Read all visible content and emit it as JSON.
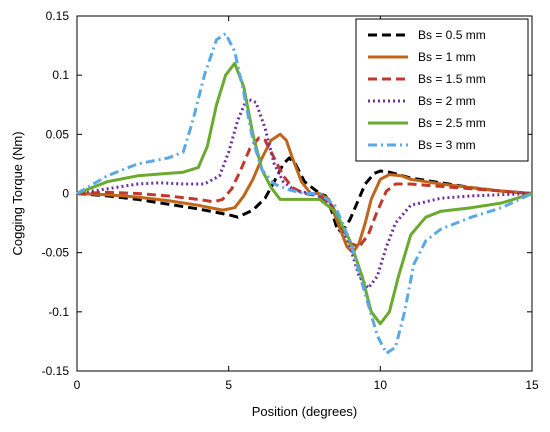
{
  "chart_data": {
    "type": "line",
    "title": "",
    "xlabel": "Position (degrees)",
    "ylabel": "Cogging Torque (Nm)",
    "xlim": [
      0,
      15
    ],
    "ylim": [
      -0.15,
      0.15
    ],
    "xticks": [
      0,
      5,
      10,
      15
    ],
    "yticks": [
      0.15,
      0.1,
      0.05,
      0,
      -0.05,
      -0.1,
      -0.15
    ],
    "ytick_labels": [
      "0.15",
      "0.1",
      "0.05",
      "0",
      "-0.05",
      "-0.1",
      "-0.15"
    ],
    "xtick_labels": [
      "0",
      "5",
      "10",
      "15"
    ],
    "grid": false,
    "legend_position": "top-right",
    "series": [
      {
        "name": "Bs = 0.5 mm",
        "color": "#000000",
        "dash": "dash",
        "x": [
          0,
          1,
          2,
          3,
          4,
          5,
          5.3,
          5.8,
          6.2,
          6.5,
          6.8,
          7.0,
          7.2,
          7.5,
          8,
          8.2,
          8.4,
          8.6,
          8.8,
          9.0,
          9.2,
          9.5,
          9.8,
          10,
          10.3,
          10.6,
          11,
          12,
          13,
          14,
          15
        ],
        "y": [
          0,
          -0.002,
          -0.005,
          -0.009,
          -0.013,
          -0.018,
          -0.02,
          -0.014,
          -0.004,
          0.01,
          0.025,
          0.03,
          0.025,
          0.01,
          0.0,
          -0.002,
          -0.015,
          -0.032,
          -0.03,
          -0.022,
          -0.01,
          0.008,
          0.017,
          0.019,
          0.018,
          0.016,
          0.013,
          0.009,
          0.005,
          0.002,
          0.0
        ]
      },
      {
        "name": "Bs = 1 mm",
        "color": "#c0651a",
        "dash": "solid",
        "x": [
          0,
          1,
          2,
          3,
          4,
          4.8,
          5.2,
          5.5,
          5.8,
          6.1,
          6.4,
          6.7,
          6.9,
          7.1,
          7.4,
          7.7,
          8,
          8.3,
          8.6,
          8.9,
          9.1,
          9.3,
          9.5,
          9.7,
          10,
          10.3,
          10.7,
          11,
          12,
          13,
          14,
          15
        ],
        "y": [
          0,
          -0.001,
          -0.003,
          -0.006,
          -0.01,
          -0.014,
          -0.012,
          -0.002,
          0.012,
          0.03,
          0.045,
          0.05,
          0.045,
          0.03,
          0.01,
          0.0,
          0.0,
          -0.005,
          -0.025,
          -0.045,
          -0.05,
          -0.042,
          -0.025,
          -0.005,
          0.012,
          0.016,
          0.015,
          0.012,
          0.008,
          0.005,
          0.002,
          0.0
        ]
      },
      {
        "name": "Bs = 1.5 mm",
        "color": "#c0392b",
        "dash": "dash",
        "x": [
          0,
          1,
          2,
          3,
          4,
          4.5,
          4.8,
          5.1,
          5.4,
          5.7,
          6.0,
          6.2,
          6.5,
          6.8,
          7.1,
          7.5,
          8,
          8.4,
          8.7,
          9.0,
          9.3,
          9.6,
          9.9,
          10.2,
          10.5,
          11,
          12,
          13,
          14,
          15
        ],
        "y": [
          0,
          0.001,
          0.0,
          -0.002,
          -0.005,
          -0.007,
          -0.005,
          0.004,
          0.02,
          0.038,
          0.047,
          0.045,
          0.03,
          0.015,
          0.005,
          0.0,
          -0.002,
          -0.01,
          -0.025,
          -0.042,
          -0.045,
          -0.035,
          -0.015,
          0.002,
          0.008,
          0.008,
          0.006,
          0.004,
          0.002,
          0.0
        ]
      },
      {
        "name": "Bs = 2 mm",
        "color": "#7030a0",
        "dash": "dot",
        "x": [
          0,
          1,
          2,
          2.7,
          3.5,
          4.2,
          4.7,
          5.0,
          5.3,
          5.6,
          5.9,
          6.2,
          6.5,
          6.8,
          7.2,
          7.8,
          8.2,
          8.6,
          9.0,
          9.3,
          9.6,
          9.9,
          10.2,
          10.5,
          11,
          12,
          13,
          14,
          15
        ],
        "y": [
          0,
          0.004,
          0.008,
          0.009,
          0.008,
          0.008,
          0.015,
          0.035,
          0.062,
          0.08,
          0.077,
          0.055,
          0.025,
          0.01,
          0.002,
          0.0,
          -0.005,
          -0.02,
          -0.045,
          -0.07,
          -0.08,
          -0.07,
          -0.045,
          -0.025,
          -0.01,
          -0.004,
          -0.002,
          -0.001,
          0.0
        ]
      },
      {
        "name": "Bs = 2.5 mm",
        "color": "#6aaa2f",
        "dash": "solid",
        "x": [
          0,
          1,
          2,
          3,
          3.5,
          4.0,
          4.3,
          4.6,
          4.9,
          5.2,
          5.5,
          5.8,
          6.1,
          6.4,
          6.7,
          7.2,
          8,
          8.5,
          9.0,
          9.4,
          9.7,
          10.0,
          10.3,
          10.6,
          11,
          11.5,
          12,
          13,
          14,
          15
        ],
        "y": [
          0,
          0.01,
          0.015,
          0.017,
          0.018,
          0.022,
          0.04,
          0.075,
          0.1,
          0.11,
          0.09,
          0.05,
          0.02,
          0.005,
          -0.005,
          -0.005,
          -0.005,
          -0.015,
          -0.04,
          -0.07,
          -0.1,
          -0.11,
          -0.1,
          -0.07,
          -0.035,
          -0.02,
          -0.015,
          -0.012,
          -0.008,
          0.0
        ]
      },
      {
        "name": "Bs = 3 mm",
        "color": "#5aa9e6",
        "dash": "dashdot",
        "x": [
          0,
          1,
          2,
          3,
          3.5,
          3.8,
          4.2,
          4.6,
          4.9,
          5.2,
          5.5,
          5.8,
          6.1,
          6.5,
          7.0,
          7.5,
          8,
          8.5,
          9.0,
          9.5,
          9.9,
          10.2,
          10.5,
          10.8,
          11.1,
          11.5,
          12,
          13,
          14,
          15
        ],
        "y": [
          0,
          0.015,
          0.025,
          0.03,
          0.035,
          0.06,
          0.1,
          0.13,
          0.135,
          0.12,
          0.085,
          0.045,
          0.02,
          0.008,
          0.003,
          0.0,
          0.0,
          -0.01,
          -0.04,
          -0.085,
          -0.12,
          -0.135,
          -0.13,
          -0.1,
          -0.06,
          -0.04,
          -0.03,
          -0.02,
          -0.012,
          0.0
        ]
      }
    ]
  }
}
